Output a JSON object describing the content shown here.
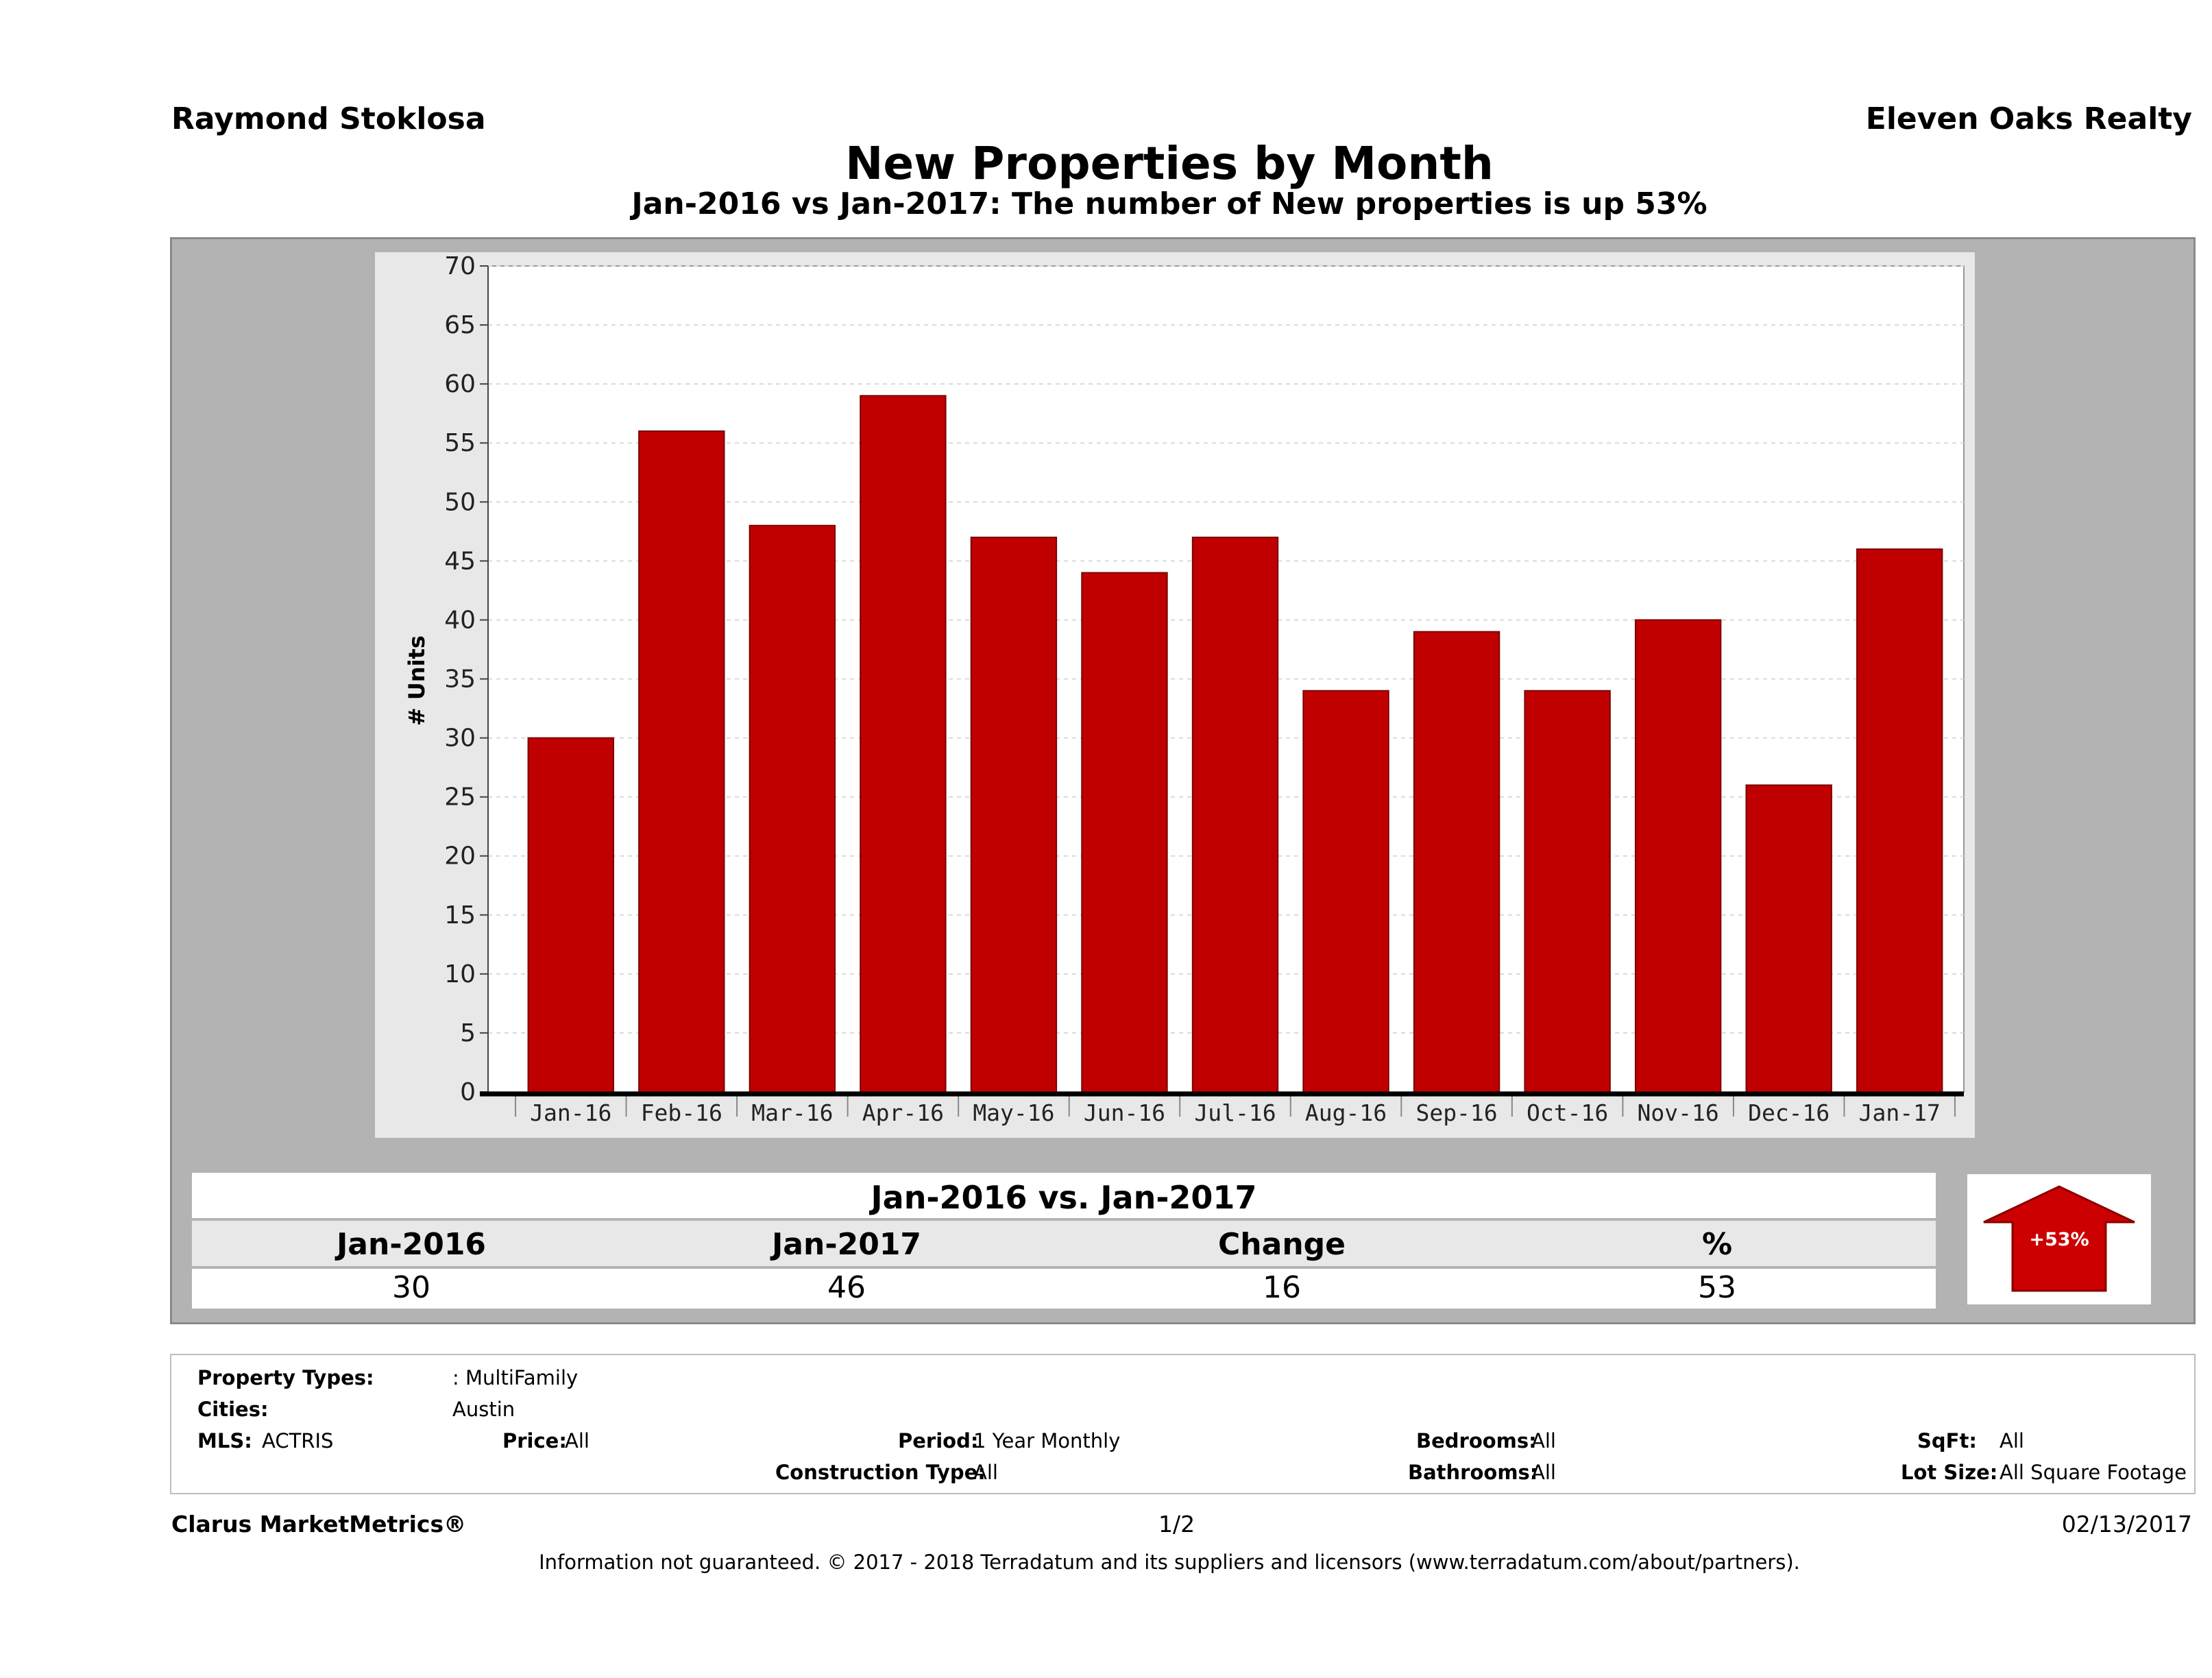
{
  "header": {
    "agent_name": "Raymond Stoklosa",
    "company": "Eleven Oaks Realty"
  },
  "colors": {
    "bar": "#c00000",
    "panel": "#b3b3b3",
    "plot_bg": "#ffffff"
  },
  "chart_data": {
    "type": "bar",
    "title": "New Properties by Month",
    "subtitle": "Jan-2016 vs Jan-2017: The number of New   properties is up 53%",
    "ylabel": "# Units",
    "xlabel": "",
    "ylim": [
      0,
      70
    ],
    "yticks": [
      0,
      5,
      10,
      15,
      20,
      25,
      30,
      35,
      40,
      45,
      50,
      55,
      60,
      65,
      70
    ],
    "grid": true,
    "categories": [
      "Jan-16",
      "Feb-16",
      "Mar-16",
      "Apr-16",
      "May-16",
      "Jun-16",
      "Jul-16",
      "Aug-16",
      "Sep-16",
      "Oct-16",
      "Nov-16",
      "Dec-16",
      "Jan-17"
    ],
    "values": [
      30,
      56,
      48,
      59,
      47,
      44,
      47,
      34,
      39,
      34,
      40,
      26,
      46
    ]
  },
  "comparison": {
    "title": "Jan-2016 vs. Jan-2017",
    "headers": [
      "Jan-2016",
      "Jan-2017",
      "Change",
      "%"
    ],
    "values": [
      "30",
      "46",
      "16",
      "53"
    ],
    "badge": "+53%",
    "direction": "up"
  },
  "filters": {
    "property_types_label": "Property Types:",
    "property_types_value": ": MultiFamily",
    "cities_label": "Cities:",
    "cities_value": "Austin",
    "mls_label": "MLS:",
    "mls_value": "ACTRIS",
    "price_label": "Price:",
    "price_value": "All",
    "period_label": "Period:",
    "period_value": "1 Year Monthly",
    "construction_label": "Construction Type:",
    "construction_value": "All",
    "bedrooms_label": "Bedrooms:",
    "bedrooms_value": "All",
    "bathrooms_label": "Bathrooms:",
    "bathrooms_value": "All",
    "sqft_label": "SqFt:",
    "sqft_value": "All",
    "lot_label": "Lot Size:",
    "lot_value": "All Square Footage"
  },
  "footer": {
    "brand": "Clarus MarketMetrics®",
    "page": "1/2",
    "date": "02/13/2017",
    "disclaimer": "Information not guaranteed. © 2017 - 2018 Terradatum and its suppliers and licensors (www.terradatum.com/about/partners)."
  }
}
